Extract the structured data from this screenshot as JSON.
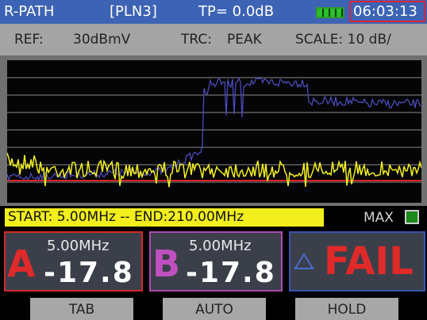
{
  "header": {
    "mode": "R-PATH",
    "plan": "[PLN3]",
    "tp": "TP= 0.0dB",
    "time": "06:03:13"
  },
  "status": {
    "ref": "REF:",
    "ref_value": "30dBmV",
    "trc": "TRC:",
    "trc_value": "PEAK",
    "scale": "SCALE: 10 dB/"
  },
  "range": {
    "label": "START: 5.00MHz -- END:210.00MHz",
    "max": "MAX"
  },
  "markers": [
    {
      "letter": "A",
      "freq": "5.00MHz",
      "level": "-17.8"
    },
    {
      "letter": "B",
      "freq": "5.00MHz",
      "level": "-17.8"
    }
  ],
  "delta": {
    "result": "FAIL"
  },
  "buttons": [
    "TAB",
    "AUTO",
    "HOLD"
  ]
}
